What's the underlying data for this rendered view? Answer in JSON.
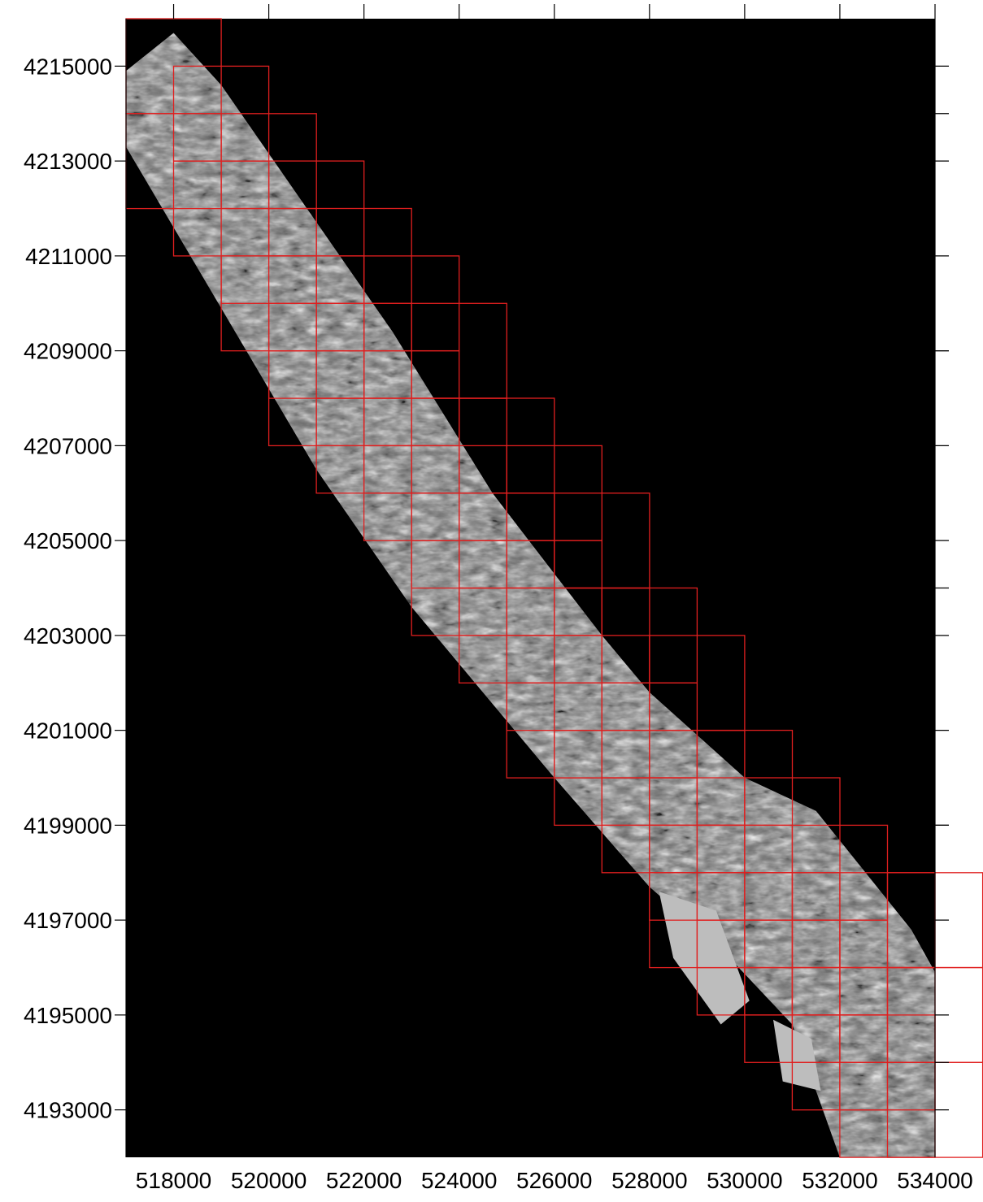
{
  "map": {
    "background_color": "#000000",
    "grid_color": "#e01f1f",
    "relief_color": "#bdbdbd",
    "x_range": [
      517000,
      534000
    ],
    "y_range": [
      4192000,
      4216000
    ],
    "x_ticks": [
      518000,
      520000,
      522000,
      524000,
      526000,
      528000,
      530000,
      532000,
      534000
    ],
    "x_tick_labels": [
      "518000",
      "520000",
      "522000",
      "524000",
      "526000",
      "528000",
      "530000",
      "532000",
      "534000"
    ],
    "y_ticks": [
      4215000,
      4213000,
      4211000,
      4209000,
      4207000,
      4205000,
      4203000,
      4201000,
      4199000,
      4197000,
      4195000,
      4193000
    ],
    "y_tick_labels": [
      "4215000",
      "4213000",
      "4211000",
      "4209000",
      "4207000",
      "4205000",
      "4203000",
      "4201000",
      "4199000",
      "4197000",
      "4195000",
      "4193000"
    ],
    "tile_size": 2000,
    "tiles": [
      [
        517000,
        4214000
      ],
      [
        517000,
        4212000
      ],
      [
        518000,
        4213000
      ],
      [
        518000,
        4211000
      ],
      [
        519000,
        4212000
      ],
      [
        519000,
        4210000
      ],
      [
        519000,
        4209000
      ],
      [
        520000,
        4211000
      ],
      [
        520000,
        4209000
      ],
      [
        520000,
        4208000
      ],
      [
        520000,
        4207000
      ],
      [
        521000,
        4210000
      ],
      [
        521000,
        4208000
      ],
      [
        521000,
        4207000
      ],
      [
        521000,
        4206000
      ],
      [
        522000,
        4209000
      ],
      [
        522000,
        4207000
      ],
      [
        522000,
        4206000
      ],
      [
        522000,
        4205000
      ],
      [
        523000,
        4208000
      ],
      [
        523000,
        4206000
      ],
      [
        523000,
        4205000
      ],
      [
        523000,
        4204000
      ],
      [
        523000,
        4203000
      ],
      [
        524000,
        4206000
      ],
      [
        524000,
        4204000
      ],
      [
        524000,
        4203000
      ],
      [
        524000,
        4202000
      ],
      [
        525000,
        4205000
      ],
      [
        525000,
        4203000
      ],
      [
        525000,
        4202000
      ],
      [
        525000,
        4201000
      ],
      [
        525000,
        4200000
      ],
      [
        526000,
        4204000
      ],
      [
        526000,
        4202000
      ],
      [
        526000,
        4201000
      ],
      [
        526000,
        4200000
      ],
      [
        526000,
        4199000
      ],
      [
        527000,
        4202000
      ],
      [
        527000,
        4200000
      ],
      [
        527000,
        4199000
      ],
      [
        527000,
        4198000
      ],
      [
        528000,
        4201000
      ],
      [
        528000,
        4199000
      ],
      [
        528000,
        4198000
      ],
      [
        528000,
        4197000
      ],
      [
        528000,
        4196000
      ],
      [
        529000,
        4199000
      ],
      [
        529000,
        4197000
      ],
      [
        529000,
        4196000
      ],
      [
        529000,
        4195000
      ],
      [
        530000,
        4198000
      ],
      [
        530000,
        4196000
      ],
      [
        530000,
        4195000
      ],
      [
        530000,
        4194000
      ],
      [
        531000,
        4197000
      ],
      [
        531000,
        4195000
      ],
      [
        531000,
        4194000
      ],
      [
        531000,
        4193000
      ],
      [
        532000,
        4196000
      ],
      [
        532000,
        4194000
      ],
      [
        532000,
        4193000
      ],
      [
        532000,
        4192000
      ],
      [
        533000,
        4196000
      ],
      [
        533000,
        4194000
      ],
      [
        533000,
        4192000
      ]
    ],
    "relief_strip": [
      [
        518000,
        4215700
      ],
      [
        519000,
        4214600
      ],
      [
        520800,
        4212000
      ],
      [
        522600,
        4209400
      ],
      [
        524700,
        4206000
      ],
      [
        526000,
        4204300
      ],
      [
        527000,
        4203000
      ],
      [
        528000,
        4201800
      ],
      [
        530000,
        4200000
      ],
      [
        531500,
        4199300
      ],
      [
        533500,
        4196800
      ],
      [
        534000,
        4195900
      ],
      [
        534000,
        4192000
      ],
      [
        532000,
        4192000
      ],
      [
        531000,
        4194800
      ],
      [
        529500,
        4196400
      ],
      [
        528000,
        4197700
      ],
      [
        526000,
        4200000
      ],
      [
        523000,
        4203600
      ],
      [
        521000,
        4206500
      ],
      [
        517000,
        4213300
      ],
      [
        517000,
        4214900
      ]
    ],
    "light_patches": [
      [
        [
          528200,
          4197600
        ],
        [
          529400,
          4197200
        ],
        [
          530100,
          4195300
        ],
        [
          529500,
          4194800
        ],
        [
          528500,
          4196200
        ]
      ],
      [
        [
          530600,
          4194900
        ],
        [
          531400,
          4194500
        ],
        [
          531600,
          4193400
        ],
        [
          530800,
          4193600
        ]
      ]
    ]
  }
}
